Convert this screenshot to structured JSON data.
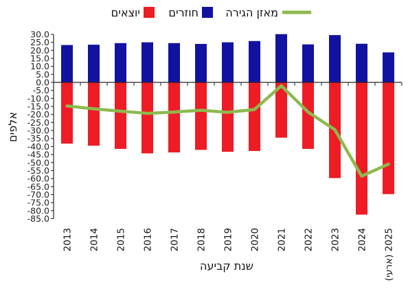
{
  "chart_data": {
    "type": "bar",
    "title": "",
    "xlabel": "שנת קביעה",
    "ylabel": "אלפים",
    "ylim": [
      -85,
      30
    ],
    "ytick_step": 5,
    "legend_position": "top",
    "categories": [
      "2013",
      "2014",
      "2015",
      "2016",
      "2017",
      "2018",
      "2019",
      "2020",
      "2021",
      "2022",
      "2023",
      "2024",
      "2025 (ארעי)"
    ],
    "series": [
      {
        "name": "חוזרים",
        "type": "bar",
        "color": "#1212a0",
        "values": [
          23.3,
          23.5,
          24.5,
          25.0,
          24.5,
          24.0,
          25.0,
          25.8,
          30.1,
          23.7,
          29.5,
          24.1,
          18.7
        ]
      },
      {
        "name": "יוצאים",
        "type": "bar",
        "color": "#ee1c25",
        "values": [
          -38.2,
          -39.5,
          -41.5,
          -44.3,
          -43.7,
          -42.1,
          -43.3,
          -42.8,
          -34.5,
          -41.5,
          -59.7,
          -82.5,
          -69.7
        ]
      },
      {
        "name": "מאזן הגירה",
        "type": "line",
        "color": "#8cba4e",
        "values": [
          -14.7,
          -16.5,
          -18.0,
          -19.3,
          -18.5,
          -17.4,
          -18.7,
          -16.9,
          -2.1,
          -18.5,
          -29.5,
          -58.5,
          -51.0
        ]
      }
    ],
    "legend": [
      "מאזן הגירה",
      "חוזרים",
      "יוצאים"
    ]
  }
}
